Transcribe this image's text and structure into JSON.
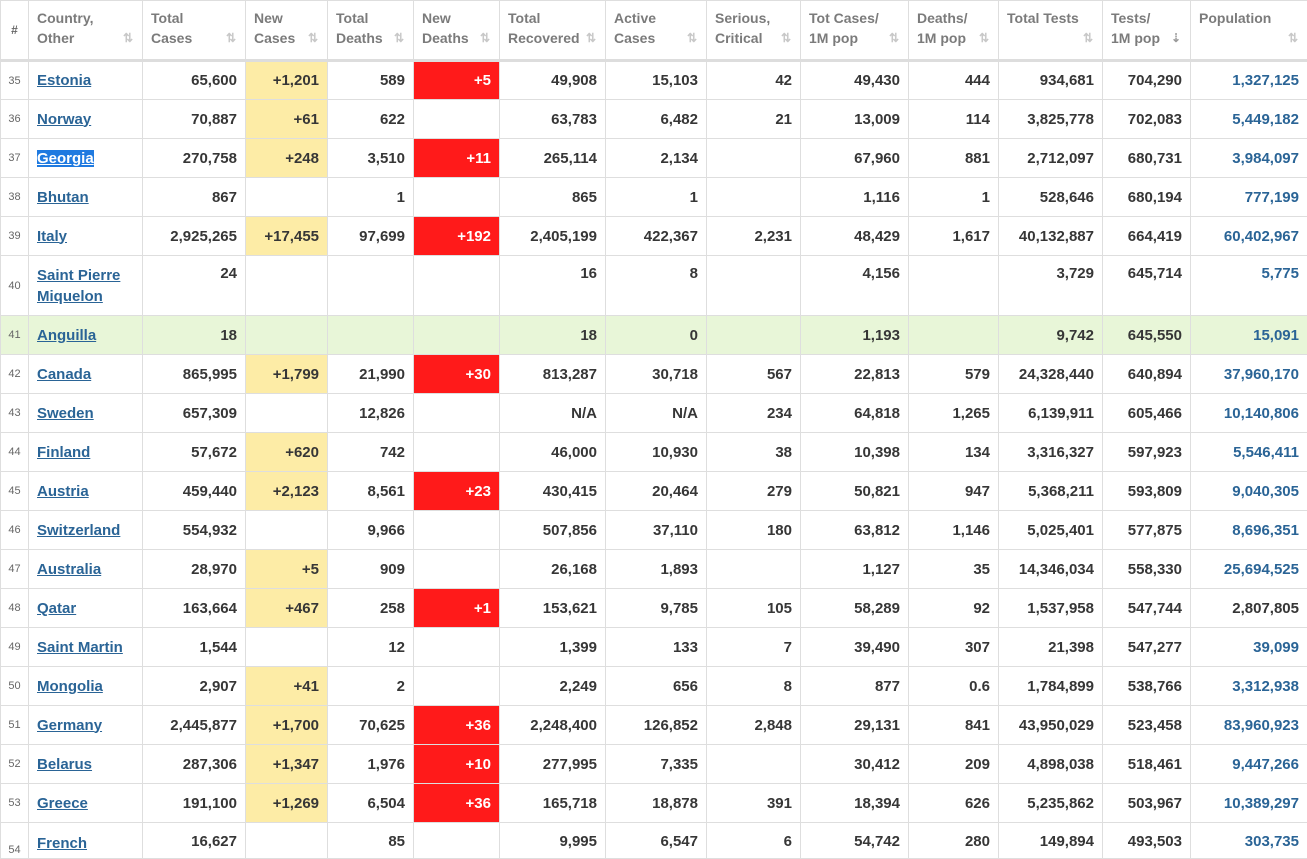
{
  "headers": [
    {
      "key": "num",
      "label": "#"
    },
    {
      "key": "country",
      "label": "Country, Other"
    },
    {
      "key": "total_cases",
      "label": "Total Cases"
    },
    {
      "key": "new_cases",
      "label": "New Cases"
    },
    {
      "key": "total_deaths",
      "label": "Total Deaths"
    },
    {
      "key": "new_deaths",
      "label": "New Deaths"
    },
    {
      "key": "total_recovered",
      "label": "Total Recovered"
    },
    {
      "key": "active_cases",
      "label": "Active Cases"
    },
    {
      "key": "serious",
      "label": "Serious, Critical"
    },
    {
      "key": "cases_per_1m",
      "label": "Tot Cases/ 1M pop"
    },
    {
      "key": "deaths_per_1m",
      "label": "Deaths/ 1M pop"
    },
    {
      "key": "total_tests",
      "label": "Total Tests"
    },
    {
      "key": "tests_per_1m",
      "label": "Tests/ 1M pop"
    },
    {
      "key": "population",
      "label": "Population"
    }
  ],
  "sort": {
    "column": "tests_per_1m",
    "direction": "descending"
  },
  "colors": {
    "new_cases_bg": "#fdeca6",
    "new_deaths_bg": "#ff1a1a",
    "link": "#2a6496",
    "highlight_row": "#e8f6d8",
    "selection": "#1f7ae0"
  },
  "rows": [
    {
      "num": "35",
      "country": "Estonia",
      "total_cases": "65,600",
      "new_cases": "+1,201",
      "total_deaths": "589",
      "new_deaths": "+5",
      "total_recovered": "49,908",
      "active_cases": "15,103",
      "serious": "42",
      "cases_per_1m": "49,430",
      "deaths_per_1m": "444",
      "total_tests": "934,681",
      "tests_per_1m": "704,290",
      "population": "1,327,125"
    },
    {
      "num": "36",
      "country": "Norway",
      "total_cases": "70,887",
      "new_cases": "+61",
      "total_deaths": "622",
      "new_deaths": "",
      "total_recovered": "63,783",
      "active_cases": "6,482",
      "serious": "21",
      "cases_per_1m": "13,009",
      "deaths_per_1m": "114",
      "total_tests": "3,825,778",
      "tests_per_1m": "702,083",
      "population": "5,449,182"
    },
    {
      "num": "37",
      "country": "Georgia",
      "total_cases": "270,758",
      "new_cases": "+248",
      "total_deaths": "3,510",
      "new_deaths": "+11",
      "total_recovered": "265,114",
      "active_cases": "2,134",
      "serious": "",
      "cases_per_1m": "67,960",
      "deaths_per_1m": "881",
      "total_tests": "2,712,097",
      "tests_per_1m": "680,731",
      "population": "3,984,097",
      "selected": true
    },
    {
      "num": "38",
      "country": "Bhutan",
      "total_cases": "867",
      "new_cases": "",
      "total_deaths": "1",
      "new_deaths": "",
      "total_recovered": "865",
      "active_cases": "1",
      "serious": "",
      "cases_per_1m": "1,116",
      "deaths_per_1m": "1",
      "total_tests": "528,646",
      "tests_per_1m": "680,194",
      "population": "777,199"
    },
    {
      "num": "39",
      "country": "Italy",
      "total_cases": "2,925,265",
      "new_cases": "+17,455",
      "total_deaths": "97,699",
      "new_deaths": "+192",
      "total_recovered": "2,405,199",
      "active_cases": "422,367",
      "serious": "2,231",
      "cases_per_1m": "48,429",
      "deaths_per_1m": "1,617",
      "total_tests": "40,132,887",
      "tests_per_1m": "664,419",
      "population": "60,402,967"
    },
    {
      "num": "40",
      "country": "Saint Pierre Miquelon",
      "total_cases": "24",
      "new_cases": "",
      "total_deaths": "",
      "new_deaths": "",
      "total_recovered": "16",
      "active_cases": "8",
      "serious": "",
      "cases_per_1m": "4,156",
      "deaths_per_1m": "",
      "total_tests": "3,729",
      "tests_per_1m": "645,714",
      "population": "5,775",
      "tall": true
    },
    {
      "num": "41",
      "country": "Anguilla",
      "total_cases": "18",
      "new_cases": "",
      "total_deaths": "",
      "new_deaths": "",
      "total_recovered": "18",
      "active_cases": "0",
      "serious": "",
      "cases_per_1m": "1,193",
      "deaths_per_1m": "",
      "total_tests": "9,742",
      "tests_per_1m": "645,550",
      "population": "15,091",
      "highlight": true
    },
    {
      "num": "42",
      "country": "Canada",
      "total_cases": "865,995",
      "new_cases": "+1,799",
      "total_deaths": "21,990",
      "new_deaths": "+30",
      "total_recovered": "813,287",
      "active_cases": "30,718",
      "serious": "567",
      "cases_per_1m": "22,813",
      "deaths_per_1m": "579",
      "total_tests": "24,328,440",
      "tests_per_1m": "640,894",
      "population": "37,960,170"
    },
    {
      "num": "43",
      "country": "Sweden",
      "total_cases": "657,309",
      "new_cases": "",
      "total_deaths": "12,826",
      "new_deaths": "",
      "total_recovered": "N/A",
      "active_cases": "N/A",
      "serious": "234",
      "cases_per_1m": "64,818",
      "deaths_per_1m": "1,265",
      "total_tests": "6,139,911",
      "tests_per_1m": "605,466",
      "population": "10,140,806"
    },
    {
      "num": "44",
      "country": "Finland",
      "total_cases": "57,672",
      "new_cases": "+620",
      "total_deaths": "742",
      "new_deaths": "",
      "total_recovered": "46,000",
      "active_cases": "10,930",
      "serious": "38",
      "cases_per_1m": "10,398",
      "deaths_per_1m": "134",
      "total_tests": "3,316,327",
      "tests_per_1m": "597,923",
      "population": "5,546,411"
    },
    {
      "num": "45",
      "country": "Austria",
      "total_cases": "459,440",
      "new_cases": "+2,123",
      "total_deaths": "8,561",
      "new_deaths": "+23",
      "total_recovered": "430,415",
      "active_cases": "20,464",
      "serious": "279",
      "cases_per_1m": "50,821",
      "deaths_per_1m": "947",
      "total_tests": "5,368,211",
      "tests_per_1m": "593,809",
      "population": "9,040,305"
    },
    {
      "num": "46",
      "country": "Switzerland",
      "total_cases": "554,932",
      "new_cases": "",
      "total_deaths": "9,966",
      "new_deaths": "",
      "total_recovered": "507,856",
      "active_cases": "37,110",
      "serious": "180",
      "cases_per_1m": "63,812",
      "deaths_per_1m": "1,146",
      "total_tests": "5,025,401",
      "tests_per_1m": "577,875",
      "population": "8,696,351"
    },
    {
      "num": "47",
      "country": "Australia",
      "total_cases": "28,970",
      "new_cases": "+5",
      "total_deaths": "909",
      "new_deaths": "",
      "total_recovered": "26,168",
      "active_cases": "1,893",
      "serious": "",
      "cases_per_1m": "1,127",
      "deaths_per_1m": "35",
      "total_tests": "14,346,034",
      "tests_per_1m": "558,330",
      "population": "25,694,525"
    },
    {
      "num": "48",
      "country": "Qatar",
      "total_cases": "163,664",
      "new_cases": "+467",
      "total_deaths": "258",
      "new_deaths": "+1",
      "total_recovered": "153,621",
      "active_cases": "9,785",
      "serious": "105",
      "cases_per_1m": "58,289",
      "deaths_per_1m": "92",
      "total_tests": "1,537,958",
      "tests_per_1m": "547,744",
      "population": "2,807,805",
      "plain_population": true
    },
    {
      "num": "49",
      "country": "Saint Martin",
      "total_cases": "1,544",
      "new_cases": "",
      "total_deaths": "12",
      "new_deaths": "",
      "total_recovered": "1,399",
      "active_cases": "133",
      "serious": "7",
      "cases_per_1m": "39,490",
      "deaths_per_1m": "307",
      "total_tests": "21,398",
      "tests_per_1m": "547,277",
      "population": "39,099"
    },
    {
      "num": "50",
      "country": "Mongolia",
      "total_cases": "2,907",
      "new_cases": "+41",
      "total_deaths": "2",
      "new_deaths": "",
      "total_recovered": "2,249",
      "active_cases": "656",
      "serious": "8",
      "cases_per_1m": "877",
      "deaths_per_1m": "0.6",
      "total_tests": "1,784,899",
      "tests_per_1m": "538,766",
      "population": "3,312,938"
    },
    {
      "num": "51",
      "country": "Germany",
      "total_cases": "2,445,877",
      "new_cases": "+1,700",
      "total_deaths": "70,625",
      "new_deaths": "+36",
      "total_recovered": "2,248,400",
      "active_cases": "126,852",
      "serious": "2,848",
      "cases_per_1m": "29,131",
      "deaths_per_1m": "841",
      "total_tests": "43,950,029",
      "tests_per_1m": "523,458",
      "population": "83,960,923"
    },
    {
      "num": "52",
      "country": "Belarus",
      "total_cases": "287,306",
      "new_cases": "+1,347",
      "total_deaths": "1,976",
      "new_deaths": "+10",
      "total_recovered": "277,995",
      "active_cases": "7,335",
      "serious": "",
      "cases_per_1m": "30,412",
      "deaths_per_1m": "209",
      "total_tests": "4,898,038",
      "tests_per_1m": "518,461",
      "population": "9,447,266"
    },
    {
      "num": "53",
      "country": "Greece",
      "total_cases": "191,100",
      "new_cases": "+1,269",
      "total_deaths": "6,504",
      "new_deaths": "+36",
      "total_recovered": "165,718",
      "active_cases": "18,878",
      "serious": "391",
      "cases_per_1m": "18,394",
      "deaths_per_1m": "626",
      "total_tests": "5,235,862",
      "tests_per_1m": "503,967",
      "population": "10,389,297"
    },
    {
      "num": "54",
      "country": "French",
      "total_cases": "16,627",
      "new_cases": "",
      "total_deaths": "85",
      "new_deaths": "",
      "total_recovered": "9,995",
      "active_cases": "6,547",
      "serious": "6",
      "cases_per_1m": "54,742",
      "deaths_per_1m": "280",
      "total_tests": "149,894",
      "tests_per_1m": "493,503",
      "population": "303,735",
      "partial": true
    }
  ]
}
